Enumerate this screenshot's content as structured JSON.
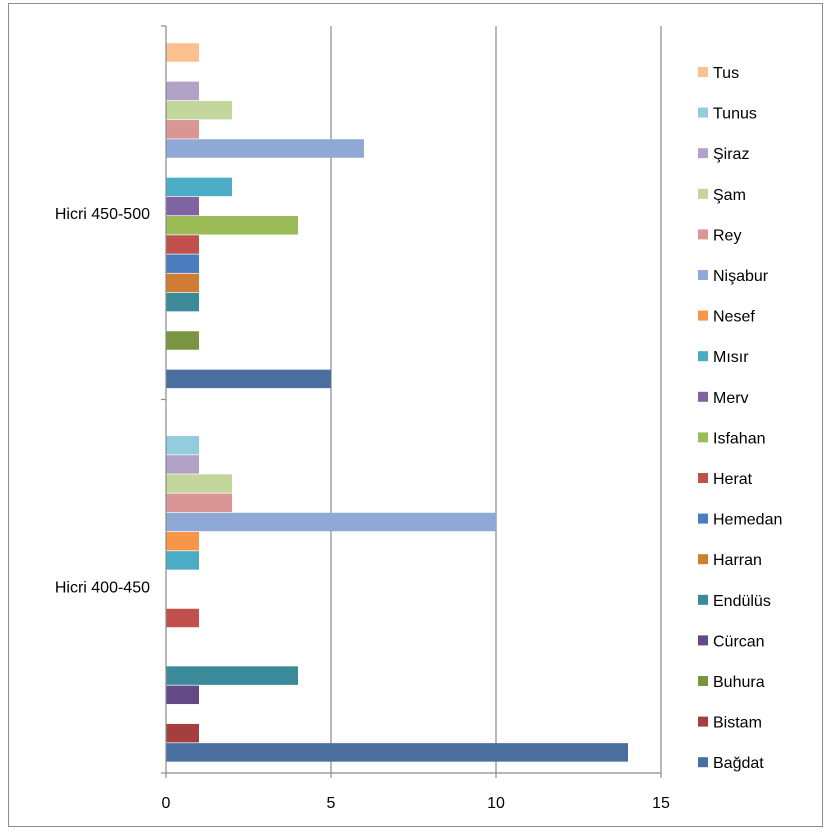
{
  "chart_data": {
    "type": "bar",
    "orientation": "horizontal",
    "title": "",
    "xlabel": "",
    "ylabel": "",
    "xlim": [
      0,
      15
    ],
    "x_ticks": [
      0,
      5,
      10,
      15
    ],
    "vertical_gridlines": true,
    "legend_position": "right",
    "categories": [
      "Hicri 400-450",
      "Hicri 450-500"
    ],
    "series": [
      {
        "name": "Bağdat",
        "color": "#4a6f9f",
        "values": [
          14,
          5
        ]
      },
      {
        "name": "Bistam",
        "color": "#a3403f",
        "values": [
          1,
          0
        ]
      },
      {
        "name": "Buhura",
        "color": "#7a9540",
        "values": [
          0,
          1
        ]
      },
      {
        "name": "Cürcan",
        "color": "#634a86",
        "values": [
          1,
          0
        ]
      },
      {
        "name": "Endülüs",
        "color": "#3a8a9a",
        "values": [
          4,
          1
        ]
      },
      {
        "name": "Harran",
        "color": "#d07c32",
        "values": [
          0,
          1
        ]
      },
      {
        "name": "Hemedan",
        "color": "#4b7cc0",
        "values": [
          0,
          1
        ]
      },
      {
        "name": "Herat",
        "color": "#c0504d",
        "values": [
          1,
          1
        ]
      },
      {
        "name": "Isfahan",
        "color": "#9bbb59",
        "values": [
          0,
          4
        ]
      },
      {
        "name": "Merv",
        "color": "#8064a2",
        "values": [
          0,
          1
        ]
      },
      {
        "name": "Mısır",
        "color": "#4bacc6",
        "values": [
          1,
          2
        ]
      },
      {
        "name": "Nesef",
        "color": "#f79646",
        "values": [
          1,
          0
        ]
      },
      {
        "name": "Nişabur",
        "color": "#8ea9d5",
        "values": [
          10,
          6
        ]
      },
      {
        "name": "Rey",
        "color": "#d99694",
        "values": [
          2,
          1
        ]
      },
      {
        "name": "Şam",
        "color": "#c3d69b",
        "values": [
          2,
          2
        ]
      },
      {
        "name": "Şiraz",
        "color": "#b3a2c7",
        "values": [
          1,
          1
        ]
      },
      {
        "name": "Tunus",
        "color": "#93cddd",
        "values": [
          1,
          0
        ]
      },
      {
        "name": "Tus",
        "color": "#fac090",
        "values": [
          0,
          1
        ]
      }
    ]
  }
}
